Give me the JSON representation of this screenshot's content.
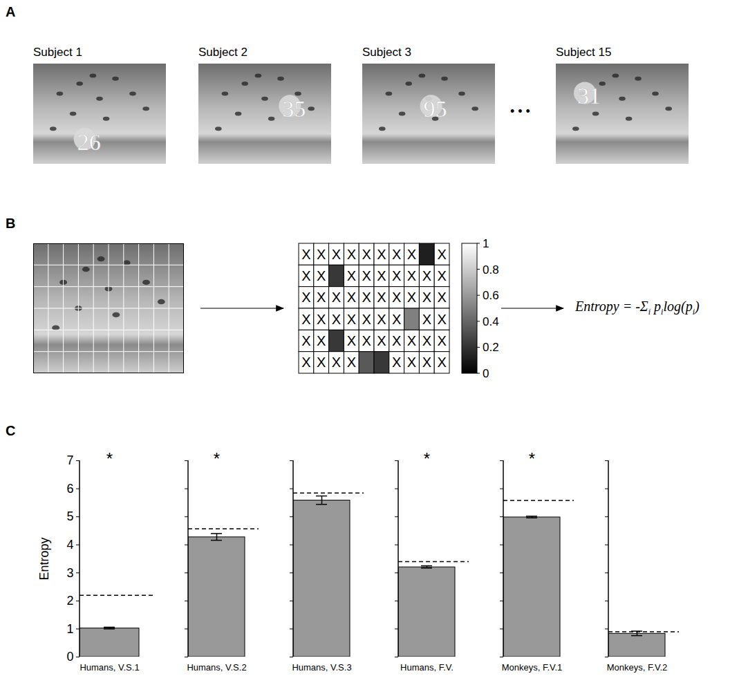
{
  "panels": {
    "A": {
      "letter": "A",
      "subjects": [
        {
          "label": "Subject 1",
          "marks": "26"
        },
        {
          "label": "Subject 2",
          "marks": "35"
        },
        {
          "label": "Subject 3",
          "marks": "95"
        },
        {
          "label": "Subject 15",
          "marks": "31"
        }
      ],
      "ellipsis": "• • •"
    },
    "B": {
      "letter": "B",
      "cell_mark": "X",
      "cells": [
        [
          null,
          null,
          null,
          null,
          null,
          null,
          null,
          null,
          0.12,
          null
        ],
        [
          null,
          null,
          0.22,
          null,
          null,
          null,
          null,
          null,
          null,
          null
        ],
        [
          null,
          null,
          null,
          null,
          null,
          null,
          null,
          null,
          null,
          null
        ],
        [
          null,
          null,
          null,
          null,
          null,
          null,
          null,
          0.5,
          null,
          null
        ],
        [
          null,
          null,
          0.22,
          null,
          null,
          null,
          null,
          null,
          null,
          null
        ],
        [
          null,
          null,
          null,
          null,
          0.35,
          0.22,
          null,
          null,
          null,
          null
        ]
      ],
      "colorbar": {
        "range": [
          0,
          1
        ],
        "ticks": [
          0,
          0.2,
          0.4,
          0.6,
          0.8,
          1
        ]
      },
      "formula": [
        {
          "text": "Entropy = -"
        },
        {
          "text": "Σ",
          "sub": "i"
        },
        {
          "text": " p",
          "sub": "i"
        },
        {
          "text": "log(p",
          "sub": "i"
        },
        {
          "text": ")"
        }
      ]
    },
    "C": {
      "letter": "C"
    }
  },
  "chart_data": [
    {
      "type": "bar",
      "categories": [
        "Humans, V.S.1"
      ],
      "values": [
        1.02
      ],
      "errors": [
        0.03
      ],
      "baseline": 2.2,
      "annotation": "*",
      "y_label": "Entropy",
      "color": "#999999",
      "ylim": [
        0,
        7
      ],
      "yticks": [
        0,
        1,
        2,
        3,
        4,
        5,
        6,
        7
      ]
    },
    {
      "type": "bar",
      "categories": [
        "Humans, V.S.2"
      ],
      "values": [
        4.27
      ],
      "errors": [
        0.12
      ],
      "baseline": 4.57,
      "annotation": "*",
      "color": "#999999",
      "ylim": [
        0,
        7
      ],
      "yticks": [
        0,
        1,
        2,
        3,
        4,
        5,
        6,
        7
      ],
      "tick_labels": "x"
    },
    {
      "type": "bar",
      "categories": [
        "Humans, V.S.3"
      ],
      "values": [
        5.58
      ],
      "errors": [
        0.15
      ],
      "baseline": 5.85,
      "color": "#999999",
      "ylim": [
        0,
        7
      ],
      "yticks": [
        0,
        1,
        2,
        3,
        4,
        5,
        6,
        7
      ],
      "tick_labels": "x"
    },
    {
      "type": "bar",
      "categories": [
        "Humans, F.V."
      ],
      "values": [
        3.2
      ],
      "errors": [
        0.04
      ],
      "baseline": 3.4,
      "annotation": "*",
      "color": "#999999",
      "ylim": [
        0,
        7
      ],
      "yticks": [
        0,
        1,
        2,
        3,
        4,
        5,
        6,
        7
      ],
      "tick_labels": "x"
    },
    {
      "type": "bar",
      "categories": [
        "Monkeys, F.V.1"
      ],
      "values": [
        4.98
      ],
      "errors": [
        0.03
      ],
      "baseline": 5.58,
      "annotation": "*",
      "color": "#999999",
      "ylim": [
        0,
        7
      ],
      "yticks": [
        0,
        1,
        2,
        3,
        4,
        5,
        6,
        7
      ],
      "tick_labels": "x"
    },
    {
      "type": "bar",
      "categories": [
        "Monkeys, F.V.2"
      ],
      "values": [
        0.83
      ],
      "errors": [
        0.08
      ],
      "baseline": 0.9,
      "color": "#999999",
      "ylim": [
        0,
        7
      ],
      "yticks": [
        0,
        1,
        2,
        3,
        4,
        5,
        6,
        7
      ],
      "tick_labels": "x"
    }
  ]
}
